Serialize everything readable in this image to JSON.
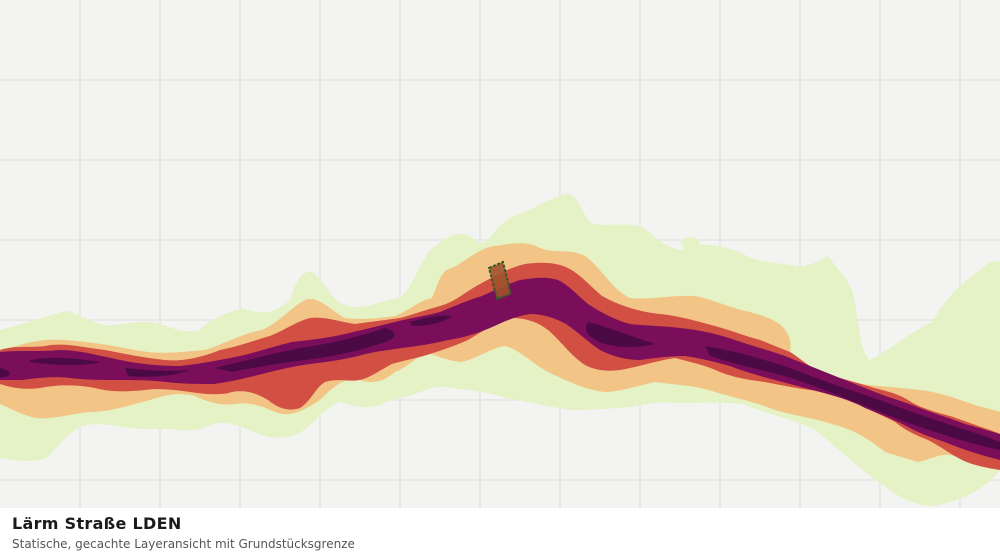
{
  "map": {
    "layer_title": "Lärm Straße LDEN",
    "layer_subtitle": "Statische, gecachte Layeransicht mit Grundstücksgrenze",
    "grid": true,
    "colors": {
      "background": "#f3f4f2",
      "grid_line": "#dcdedb",
      "noise_band_1": "#e4f2c6",
      "noise_band_2": "#f2c586",
      "noise_band_3": "#d24f44",
      "noise_band_4": "#7a0e5a",
      "noise_band_5": "#4c0a45",
      "parcel_fill": "#a0522d",
      "parcel_outline": "#2f5a2a"
    }
  }
}
